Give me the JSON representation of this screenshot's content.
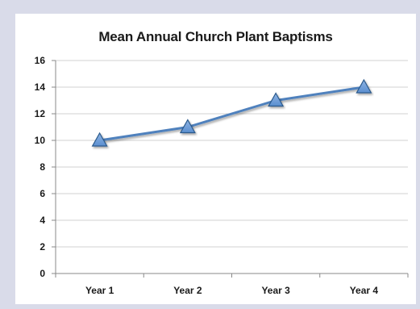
{
  "chart_data": {
    "type": "line",
    "title": "Mean Annual Church Plant Baptisms",
    "xlabel": "",
    "ylabel": "",
    "categories": [
      "Year 1",
      "Year 2",
      "Year 3",
      "Year 4"
    ],
    "series": [
      {
        "values": [
          10,
          11,
          13,
          14
        ]
      }
    ],
    "ylim": [
      0,
      16
    ],
    "yticks": [
      "0",
      "2",
      "4",
      "6",
      "8",
      "10",
      "12",
      "14",
      "16"
    ],
    "grid": true,
    "legend": "none",
    "colors": {
      "line": "#4f81bd",
      "marker_fill": "#5b8fd0",
      "marker_stroke": "#2c5a8c",
      "grid": "#d0d0d0",
      "axis": "#888888",
      "background": "#d9dbe9",
      "plot_background": "#ffffff"
    },
    "marker": "triangle-icon"
  }
}
